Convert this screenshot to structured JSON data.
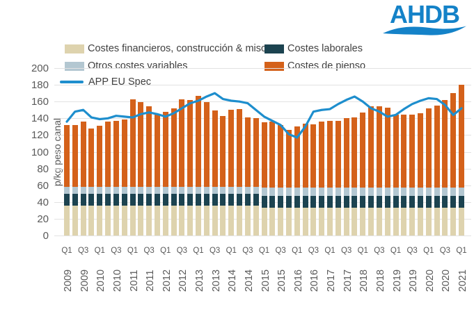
{
  "logo": {
    "text": "AHDB",
    "color": "#1482c8"
  },
  "colors": {
    "financieros": "#ded3ae",
    "laborales": "#1c4350",
    "otros": "#b3c7d1",
    "pienso": "#d4611a",
    "app_line": "#1e8ecd",
    "grid": "#e2e2e2",
    "tick_text": "#595959",
    "legend_text": "#404040"
  },
  "legend": [
    {
      "label": "Costes financieros, construcción & misc",
      "color": "#ded3ae",
      "type": "bar"
    },
    {
      "label": "Costes laborales",
      "color": "#1c4350",
      "type": "bar"
    },
    {
      "label": "Otros costes variables",
      "color": "#b3c7d1",
      "type": "bar"
    },
    {
      "label": "Costes de pienso",
      "color": "#d4611a",
      "type": "bar"
    },
    {
      "label": "APP EU Spec",
      "color": "#1e8ecd",
      "type": "line"
    }
  ],
  "chart_data": {
    "type": "bar",
    "subtype": "stacked-bars-with-line",
    "title": "",
    "xlabel": "",
    "ylabel": "p/kg peso canal",
    "ylim": [
      0,
      200
    ],
    "ytick_step": 20,
    "grid": true,
    "legend_position": "top",
    "categories": [
      "Q1 2009",
      "Q2 2009",
      "Q3 2009",
      "Q4 2009",
      "Q1 2010",
      "Q2 2010",
      "Q3 2010",
      "Q4 2010",
      "Q1 2011",
      "Q2 2011",
      "Q3 2011",
      "Q4 2011",
      "Q1 2012",
      "Q2 2012",
      "Q3 2012",
      "Q4 2012",
      "Q1 2013",
      "Q2 2013",
      "Q3 2013",
      "Q4 2013",
      "Q1 2014",
      "Q2 2014",
      "Q3 2014",
      "Q4 2014",
      "Q1 2015",
      "Q2 2015",
      "Q3 2015",
      "Q4 2015",
      "Q1 2016",
      "Q2 2016",
      "Q3 2016",
      "Q4 2016",
      "Q1 2017",
      "Q2 2017",
      "Q3 2017",
      "Q4 2017",
      "Q1 2018",
      "Q2 2018",
      "Q3 2018",
      "Q4 2018",
      "Q1 2019",
      "Q2 2019",
      "Q3 2019",
      "Q4 2019",
      "Q1 2020",
      "Q2 2020",
      "Q3 2020",
      "Q4 2020",
      "Q1 2021"
    ],
    "x_tick_labels": [
      {
        "quarter": "Q1",
        "year": "2009"
      },
      {
        "quarter": "Q3",
        "year": "2009"
      },
      {
        "quarter": "Q1",
        "year": "2010"
      },
      {
        "quarter": "Q3",
        "year": "2010"
      },
      {
        "quarter": "Q1",
        "year": "2011"
      },
      {
        "quarter": "Q3",
        "year": "2011"
      },
      {
        "quarter": "Q1",
        "year": "2012"
      },
      {
        "quarter": "Q3",
        "year": "2012"
      },
      {
        "quarter": "Q1",
        "year": "2013"
      },
      {
        "quarter": "Q3",
        "year": "2013"
      },
      {
        "quarter": "Q1",
        "year": "2014"
      },
      {
        "quarter": "Q3",
        "year": "2014"
      },
      {
        "quarter": "Q1",
        "year": "2015"
      },
      {
        "quarter": "Q3",
        "year": "2015"
      },
      {
        "quarter": "Q1",
        "year": "2016"
      },
      {
        "quarter": "Q3",
        "year": "2016"
      },
      {
        "quarter": "Q1",
        "year": "2017"
      },
      {
        "quarter": "Q3",
        "year": "2017"
      },
      {
        "quarter": "Q1",
        "year": "2018"
      },
      {
        "quarter": "Q3",
        "year": "2018"
      },
      {
        "quarter": "Q1",
        "year": "2019"
      },
      {
        "quarter": "Q3",
        "year": "2019"
      },
      {
        "quarter": "Q1",
        "year": "2020"
      },
      {
        "quarter": "Q3",
        "year": "2020"
      },
      {
        "quarter": "Q1",
        "year": "2021"
      }
    ],
    "series": [
      {
        "name": "Costes financieros, construcción & misc",
        "type": "bar",
        "color": "#ded3ae",
        "values": [
          36,
          36,
          36,
          36,
          36,
          36,
          36,
          36,
          36,
          36,
          36,
          36,
          36,
          36,
          36,
          36,
          36,
          36,
          36,
          36,
          36,
          36,
          36,
          36,
          33,
          33,
          33,
          33,
          33,
          33,
          33,
          33,
          33,
          33,
          33,
          33,
          33,
          33,
          33,
          33,
          33,
          33,
          33,
          33,
          33,
          33,
          33,
          33,
          33
        ]
      },
      {
        "name": "Costes laborales",
        "type": "bar",
        "color": "#1c4350",
        "values": [
          14,
          14,
          14,
          14,
          14,
          14,
          14,
          14,
          14,
          14,
          14,
          14,
          14,
          14,
          14,
          14,
          14,
          14,
          14,
          14,
          14,
          14,
          14,
          14,
          14,
          14,
          14,
          14,
          14,
          14,
          14,
          14,
          14,
          14,
          14,
          14,
          14,
          14,
          14,
          14,
          14,
          14,
          14,
          14,
          14,
          14,
          14,
          14,
          14
        ]
      },
      {
        "name": "Otros costes variables",
        "type": "bar",
        "color": "#b3c7d1",
        "values": [
          8,
          8,
          8,
          8,
          8,
          8,
          8,
          8,
          8,
          8,
          8,
          8,
          8,
          8,
          8,
          8,
          8,
          8,
          8,
          8,
          8,
          8,
          8,
          8,
          10,
          10,
          10,
          10,
          10,
          10,
          10,
          10,
          10,
          10,
          10,
          10,
          10,
          10,
          10,
          10,
          10,
          10,
          10,
          10,
          10,
          10,
          10,
          10,
          10
        ]
      },
      {
        "name": "Costes de pienso",
        "type": "bar",
        "color": "#d4611a",
        "values": [
          74,
          74,
          78,
          70,
          73,
          78,
          79,
          81,
          105,
          101,
          96,
          87,
          90,
          94,
          105,
          104,
          109,
          101,
          91,
          85,
          92,
          93,
          83,
          82,
          78,
          79,
          75,
          69,
          73,
          77,
          76,
          79,
          80,
          80,
          83,
          84,
          90,
          97,
          97,
          96,
          87,
          87,
          87,
          89,
          95,
          98,
          105,
          113,
          123
        ]
      },
      {
        "name": "APP EU Spec",
        "type": "line",
        "color": "#1e8ecd",
        "values": [
          136,
          148,
          150,
          141,
          139,
          140,
          143,
          142,
          141,
          145,
          147,
          145,
          142,
          146,
          152,
          158,
          161,
          166,
          170,
          163,
          161,
          160,
          158,
          150,
          142,
          137,
          132,
          121,
          117,
          130,
          148,
          150,
          151,
          157,
          162,
          166,
          160,
          152,
          148,
          142,
          144,
          151,
          157,
          161,
          164,
          163,
          156,
          144,
          152
        ]
      },
      {
        "name": "Total (stacked bar height)",
        "type": "derived-total",
        "values": [
          132,
          132,
          136,
          128,
          131,
          136,
          137,
          139,
          163,
          159,
          154,
          145,
          148,
          152,
          163,
          162,
          167,
          159,
          149,
          143,
          150,
          151,
          141,
          140,
          135,
          136,
          132,
          126,
          130,
          134,
          133,
          136,
          137,
          137,
          140,
          141,
          147,
          154,
          154,
          153,
          144,
          144,
          144,
          146,
          152,
          155,
          162,
          170,
          180
        ]
      }
    ]
  }
}
